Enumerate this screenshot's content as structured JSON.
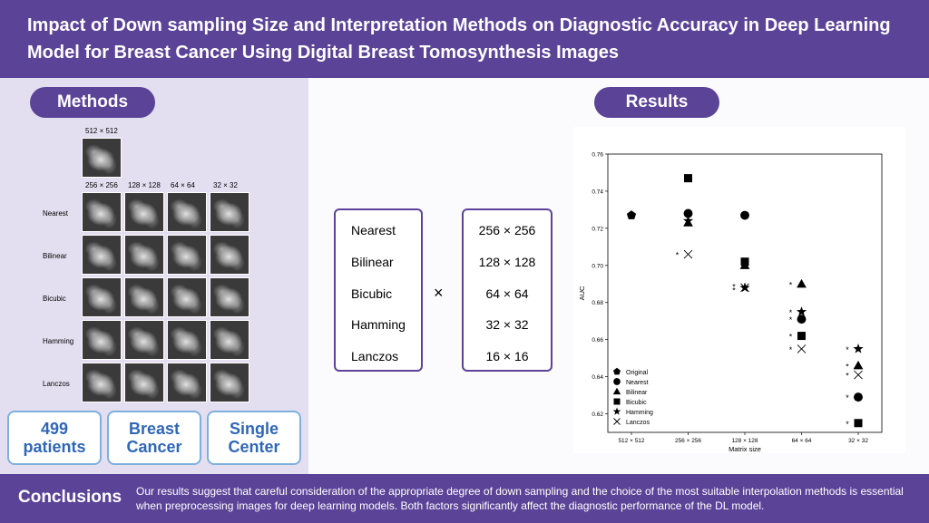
{
  "title": "Impact of Down sampling Size and Interpretation Methods on Diagnostic Accuracy in Deep Learning Model for Breast Cancer Using Digital Breast Tomosynthesis Images",
  "methods": {
    "heading": "Methods",
    "original_size": "512 × 512",
    "columns": [
      "256 × 256",
      "128 × 128",
      "64 × 64",
      "32 × 32"
    ],
    "rows": [
      "Nearest",
      "Bilinear",
      "Bicubic",
      "Hamming",
      "Lanczos"
    ],
    "stats": [
      {
        "line1": "499",
        "line2": "patients"
      },
      {
        "line1": "Breast",
        "line2": "Cancer"
      },
      {
        "line1": "Single",
        "line2": "Center"
      }
    ]
  },
  "design": {
    "methods_list": [
      "Nearest",
      "Bilinear",
      "Bicubic",
      "Hamming",
      "Lanczos"
    ],
    "times": "×",
    "sizes_list": [
      "256 × 256",
      "128 × 128",
      "64 × 64",
      "32 × 32",
      "16 × 16"
    ]
  },
  "results": {
    "heading": "Results"
  },
  "chart_data": {
    "type": "scatter",
    "xlabel": "Matrix size",
    "ylabel": "AUC",
    "categories": [
      "512 × 512",
      "256 × 256",
      "128 × 128",
      "64 × 64",
      "32 × 32"
    ],
    "ylim": [
      0.61,
      0.76
    ],
    "yticks": [
      "0.62",
      "0.64",
      "0.66",
      "0.68",
      "0.70",
      "0.72",
      "0.74",
      "0.76"
    ],
    "legend_position": "bottom-left",
    "series": [
      {
        "name": "Original",
        "marker": "pentagon",
        "values": [
          0.727,
          null,
          null,
          null,
          null
        ]
      },
      {
        "name": "Nearest",
        "marker": "circle",
        "values": [
          null,
          0.728,
          0.727,
          0.671,
          0.629
        ]
      },
      {
        "name": "Bilinear",
        "marker": "triangle",
        "values": [
          null,
          0.723,
          0.7,
          0.69,
          0.646
        ]
      },
      {
        "name": "Bicubic",
        "marker": "square",
        "values": [
          null,
          0.747,
          0.702,
          0.662,
          0.615
        ]
      },
      {
        "name": "Hamming",
        "marker": "star",
        "values": [
          null,
          0.724,
          0.688,
          0.675,
          0.655
        ]
      },
      {
        "name": "Lanczos",
        "marker": "x",
        "values": [
          null,
          0.706,
          0.688,
          0.655,
          0.641
        ]
      }
    ],
    "annotations": [
      {
        "text": "*",
        "x": "256 × 256",
        "y": 0.706
      },
      {
        "text": "*",
        "x": "128 × 128",
        "y": 0.689
      },
      {
        "text": "*",
        "x": "128 × 128",
        "y": 0.687
      },
      {
        "text": "*",
        "x": "64 × 64",
        "y": 0.69
      },
      {
        "text": "*",
        "x": "64 × 64",
        "y": 0.675
      },
      {
        "text": "*",
        "x": "64 × 64",
        "y": 0.671
      },
      {
        "text": "*",
        "x": "64 × 64",
        "y": 0.662
      },
      {
        "text": "*",
        "x": "64 × 64",
        "y": 0.655
      },
      {
        "text": "*",
        "x": "32 × 32",
        "y": 0.655
      },
      {
        "text": "*",
        "x": "32 × 32",
        "y": 0.646
      },
      {
        "text": "*",
        "x": "32 × 32",
        "y": 0.641
      },
      {
        "text": "*",
        "x": "32 × 32",
        "y": 0.629
      },
      {
        "text": "*",
        "x": "32 × 32",
        "y": 0.615
      }
    ]
  },
  "conclusions": {
    "label": "Conclusions",
    "text": "Our results suggest that careful consideration of the appropriate degree of down sampling and the choice of the most suitable interpolation methods is essential when preprocessing images for deep learning models. Both factors significantly affect the diagnostic performance of the DL model."
  }
}
